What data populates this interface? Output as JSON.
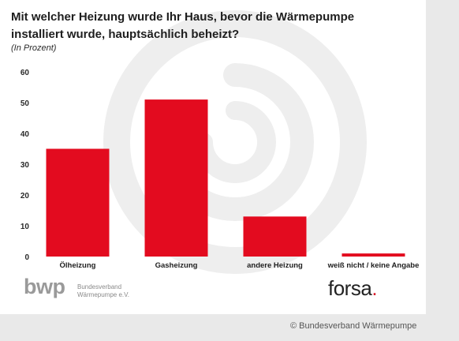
{
  "title_line1": "Mit welcher Heizung wurde Ihr Haus, bevor die Wärmepumpe",
  "title_line2": "installiert wurde, hauptsächlich beheizt?",
  "subtitle": "(In Prozent)",
  "chart_data": {
    "type": "bar",
    "categories": [
      "Ölheizung",
      "Gasheizung",
      "andere Heizung",
      "weiß nicht / keine Angabe"
    ],
    "values": [
      35,
      51,
      13,
      1
    ],
    "ylim": [
      0,
      60
    ],
    "yticks": [
      0,
      10,
      20,
      30,
      40,
      50,
      60
    ],
    "grid": false,
    "bar_color": "#e30b1f"
  },
  "logos": {
    "bwp_word": "bwp",
    "bwp_line1": "Bundesverband",
    "bwp_line2": "Wärmepumpe e.V.",
    "forsa_word": "forsa",
    "forsa_dot": "."
  },
  "copyright": "© Bundesverband Wärmepumpe"
}
